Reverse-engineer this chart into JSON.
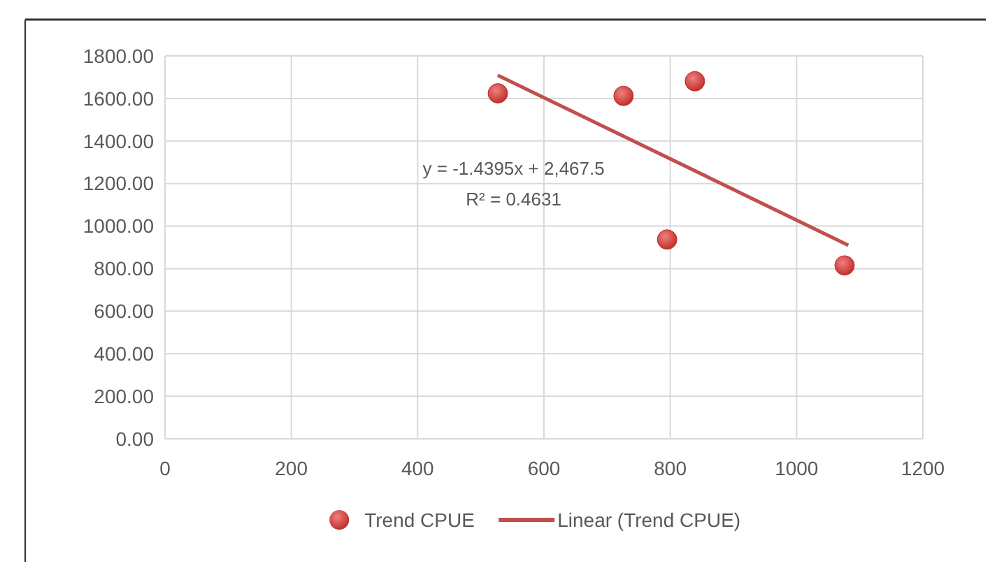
{
  "chart_data": {
    "type": "scatter",
    "x": [
      527,
      726,
      839,
      795,
      1076
    ],
    "series": [
      {
        "name": "Trend CPUE",
        "color": "#c0302c",
        "values": [
          1624,
          1612,
          1681,
          937,
          815
        ]
      },
      {
        "name": "Linear (Trend CPUE)",
        "type": "line",
        "color": "#c0504d",
        "x": [
          527,
          1082
        ],
        "values": [
          1709,
          910
        ],
        "marker": "none"
      }
    ],
    "xlim": [
      0,
      1200
    ],
    "xticks": [
      0,
      200,
      400,
      600,
      800,
      1000,
      1200
    ],
    "ylim": [
      0,
      1800
    ],
    "yticks": [
      {
        "value": 0,
        "label": "0.00"
      },
      {
        "value": 200,
        "label": "200.00"
      },
      {
        "value": 400,
        "label": "400.00"
      },
      {
        "value": 600,
        "label": "600.00"
      },
      {
        "value": 800,
        "label": "800.00"
      },
      {
        "value": 1000,
        "label": "1000.00"
      },
      {
        "value": 1200,
        "label": "1200.00"
      },
      {
        "value": 1400,
        "label": "1400.00"
      },
      {
        "value": 1600,
        "label": "1600.00"
      },
      {
        "value": 1800,
        "label": "1800.00"
      }
    ],
    "annotations": [
      "y = -1.4395x + 2,467.5",
      "R² = 0.4631"
    ],
    "grid": true,
    "legend": "bottom",
    "marker": "circle"
  }
}
